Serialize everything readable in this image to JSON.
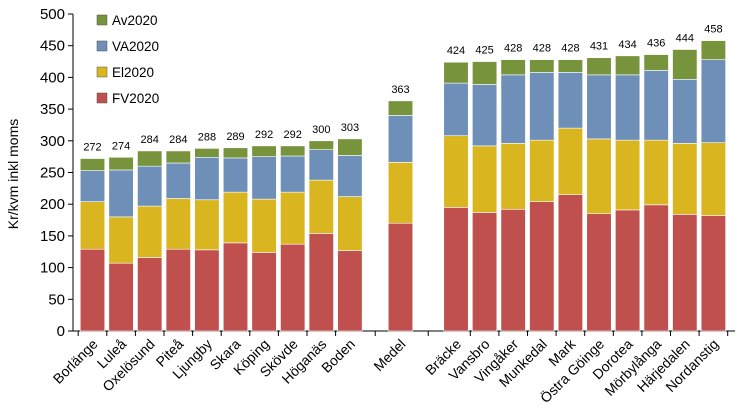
{
  "chart_data": {
    "type": "bar",
    "stacked": true,
    "ylabel": "Kr/kvm inkl moms",
    "ylim": [
      0,
      500
    ],
    "yticks": [
      0,
      50,
      100,
      150,
      200,
      250,
      300,
      350,
      400,
      450,
      500
    ],
    "legend_position": "top-left",
    "categories": [
      "Borlänge",
      "Luleå",
      "Oxelösund",
      "Piteå",
      "Ljungby",
      "Skara",
      "Köping",
      "Skövde",
      "Höganäs",
      "Boden",
      "Medel",
      "Bräcke",
      "Vansbro",
      "Vingåker",
      "Munkedal",
      "Mark",
      "Östra Göinge",
      "Dorotea",
      "Mörbylånga",
      "Härjedalen",
      "Nordanstig"
    ],
    "totals": [
      "272",
      "274",
      "284",
      "284",
      "288",
      "289",
      "292",
      "292",
      "300",
      "303",
      "363",
      "424",
      "425",
      "428",
      "428",
      "428",
      "431",
      "434",
      "436",
      "444",
      "458"
    ],
    "series": [
      {
        "name": "FV2020",
        "color": "#c0504d",
        "values": [
          129,
          107,
          116,
          129,
          128,
          139,
          124,
          137,
          154,
          127,
          170,
          195,
          187,
          192,
          204,
          215,
          185,
          191,
          199,
          184,
          182
        ]
      },
      {
        "name": "El2020",
        "color": "#d9b51f",
        "values": [
          75,
          73,
          81,
          80,
          79,
          80,
          84,
          82,
          84,
          85,
          96,
          113,
          105,
          104,
          97,
          105,
          118,
          110,
          102,
          112,
          115
        ]
      },
      {
        "name": "VA2020",
        "color": "#6e8fb7",
        "values": [
          49,
          74,
          63,
          56,
          67,
          54,
          67,
          57,
          48,
          65,
          74,
          83,
          97,
          108,
          107,
          88,
          101,
          103,
          110,
          101,
          131
        ]
      },
      {
        "name": "Av2020",
        "color": "#77933c",
        "values": [
          19,
          20,
          24,
          19,
          14,
          16,
          17,
          16,
          14,
          26,
          23,
          33,
          36,
          24,
          20,
          20,
          27,
          30,
          25,
          47,
          30
        ]
      }
    ],
    "legend_order": [
      "Av2020",
      "VA2020",
      "El2020",
      "FV2020"
    ]
  }
}
